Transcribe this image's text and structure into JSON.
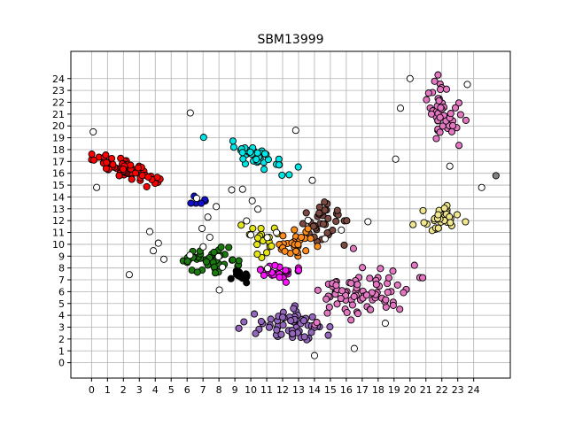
{
  "chart_data": {
    "type": "scatter",
    "title": "SBM13999",
    "xlabel": "",
    "ylabel": "",
    "xlim": [
      -1.3,
      26.3
    ],
    "ylim": [
      -1.3,
      26.3
    ],
    "grid": true,
    "x_ticks": [
      "0",
      "1",
      "2",
      "3",
      "4",
      "5",
      "6",
      "7",
      "8",
      "9",
      "10",
      "11",
      "12",
      "13",
      "14",
      "15",
      "16",
      "17",
      "18",
      "19",
      "20",
      "21",
      "22",
      "23",
      "24"
    ],
    "y_ticks": [
      "0",
      "1",
      "2",
      "3",
      "4",
      "5",
      "6",
      "7",
      "8",
      "9",
      "10",
      "11",
      "12",
      "13",
      "14",
      "15",
      "16",
      "17",
      "18",
      "19",
      "20",
      "21",
      "22",
      "23",
      "24"
    ],
    "clusters": [
      {
        "color": "#ff0000",
        "n": 70,
        "cx": 2.3,
        "cy": 16.3,
        "sx": 1.8,
        "sy": 0.5,
        "angle": -0.46
      },
      {
        "color": "#1010cc",
        "n": 6,
        "cx": 6.6,
        "cy": 13.7,
        "sx": 0.8,
        "sy": 0.4,
        "angle": 0.0
      },
      {
        "color": "#00e5e5",
        "n": 45,
        "cx": 10.5,
        "cy": 17.4,
        "sx": 2.0,
        "sy": 0.55,
        "angle": -0.6
      },
      {
        "color": "#7a4a42",
        "n": 38,
        "cx": 14.6,
        "cy": 11.9,
        "sx": 1.1,
        "sy": 1.5,
        "angle": 0.0
      },
      {
        "color": "#e6e617",
        "n": 18,
        "cx": 10.8,
        "cy": 10.4,
        "sx": 0.8,
        "sy": 1.0,
        "angle": 0.0
      },
      {
        "color": "#ff8c1a",
        "n": 28,
        "cx": 12.8,
        "cy": 10.2,
        "sx": 1.0,
        "sy": 1.1,
        "angle": 0.0
      },
      {
        "color": "#ff10ff",
        "n": 26,
        "cx": 11.9,
        "cy": 7.5,
        "sx": 1.1,
        "sy": 0.8,
        "angle": 0.0
      },
      {
        "color": "#1a7a10",
        "n": 46,
        "cx": 7.4,
        "cy": 8.7,
        "sx": 1.5,
        "sy": 0.7,
        "angle": 0.0
      },
      {
        "color": "#000000",
        "n": 16,
        "cx": 9.3,
        "cy": 7.4,
        "sx": 0.6,
        "sy": 0.6,
        "angle": 0.0
      },
      {
        "color": "#9467bd",
        "n": 60,
        "cx": 12.5,
        "cy": 3.3,
        "sx": 1.9,
        "sy": 1.1,
        "angle": 0.0
      },
      {
        "color": "#e377c2",
        "n": 80,
        "cx": 17.0,
        "cy": 5.8,
        "sx": 2.4,
        "sy": 1.6,
        "angle": 0.45
      },
      {
        "color": "#e377c2",
        "n": 50,
        "cx": 22.0,
        "cy": 21.3,
        "sx": 0.9,
        "sy": 2.2,
        "angle": 0.25
      },
      {
        "color": "#f0e68c",
        "n": 36,
        "cx": 22.0,
        "cy": 12.2,
        "sx": 1.3,
        "sy": 0.9,
        "angle": 0.0
      },
      {
        "color": "#ffffff",
        "n": 30,
        "cx": 12.0,
        "cy": 11.5,
        "sx": 7.0,
        "sy": 6.0,
        "angle": 0.0
      }
    ],
    "outliers": [
      {
        "color": "#ffffff",
        "x": 0.1,
        "y": 19.5
      },
      {
        "color": "#ffffff",
        "x": 6.2,
        "y": 21.1
      },
      {
        "color": "#ffffff",
        "x": 20.0,
        "y": 24.0
      },
      {
        "color": "#ffffff",
        "x": 19.4,
        "y": 21.5
      },
      {
        "color": "#ffffff",
        "x": 23.6,
        "y": 23.5
      },
      {
        "color": "#ffffff",
        "x": 19.1,
        "y": 17.2
      },
      {
        "color": "#ffffff",
        "x": 22.5,
        "y": 16.6
      },
      {
        "color": "#ffffff",
        "x": 4.2,
        "y": 10.1
      },
      {
        "color": "#ffffff",
        "x": 7.3,
        "y": 12.3
      },
      {
        "color": "#ffffff",
        "x": 14.0,
        "y": 0.6
      },
      {
        "color": "#ffffff",
        "x": 16.5,
        "y": 1.2
      },
      {
        "color": "#ffffff",
        "x": 24.5,
        "y": 14.8
      },
      {
        "color": "#808080",
        "x": 25.4,
        "y": 15.8
      }
    ]
  }
}
